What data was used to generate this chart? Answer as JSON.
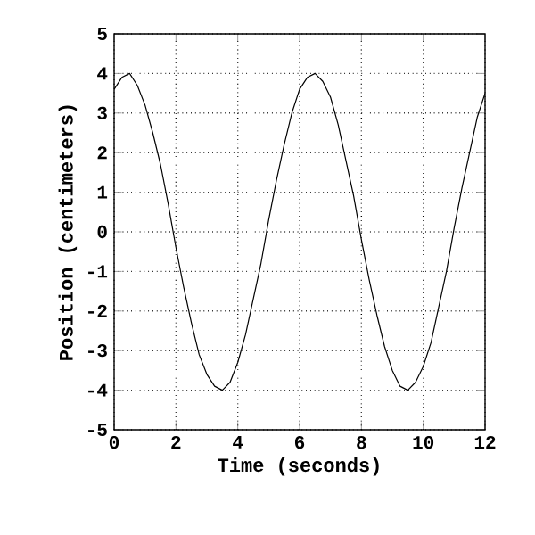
{
  "chart_data": {
    "type": "line",
    "xlabel": "Time (seconds)",
    "ylabel": "Position (centimeters)",
    "x": [
      0,
      0.25,
      0.5,
      0.75,
      1,
      1.25,
      1.5,
      1.75,
      2,
      2.25,
      2.5,
      2.75,
      3,
      3.25,
      3.5,
      3.75,
      4,
      4.25,
      4.5,
      4.75,
      5,
      5.25,
      5.5,
      5.75,
      6,
      6.25,
      6.5,
      6.75,
      7,
      7.25,
      7.5,
      7.75,
      8,
      8.25,
      8.5,
      8.75,
      9,
      9.25,
      9.5,
      9.75,
      10,
      10.25,
      10.5,
      10.75,
      11,
      11.25,
      11.5,
      11.75,
      12
    ],
    "series": [
      {
        "color": "#000000",
        "values": [
          3.6,
          3.9,
          4.0,
          3.7,
          3.2,
          2.5,
          1.7,
          0.7,
          -0.4,
          -1.4,
          -2.3,
          -3.1,
          -3.6,
          -3.9,
          -4.0,
          -3.8,
          -3.3,
          -2.6,
          -1.7,
          -0.8,
          0.3,
          1.3,
          2.2,
          3.0,
          3.6,
          3.9,
          4.0,
          3.8,
          3.4,
          2.7,
          1.8,
          0.9,
          -0.2,
          -1.2,
          -2.1,
          -2.9,
          -3.5,
          -3.9,
          -4.0,
          -3.8,
          -3.4,
          -2.8,
          -1.9,
          -1.0,
          0.1,
          1.1,
          2.0,
          2.9,
          3.5
        ]
      }
    ],
    "xlim": [
      0,
      12
    ],
    "ylim": [
      -5,
      5
    ],
    "xticks": [
      0,
      2,
      4,
      6,
      8,
      10,
      12
    ],
    "yticks": [
      -5,
      -4,
      -3,
      -2,
      -1,
      0,
      1,
      2,
      3,
      4,
      5
    ],
    "grid": true,
    "marker": "none",
    "line_style": "solid"
  }
}
